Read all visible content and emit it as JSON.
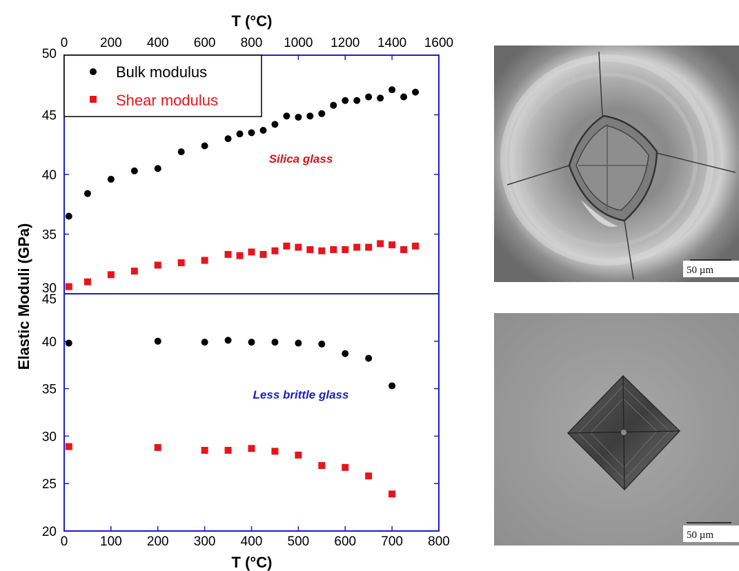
{
  "chart_data": {
    "type": "scatter",
    "top_axis_label": "T (°C)",
    "bottom_axis_label": "T (°C)",
    "ylabel": "Elastic Moduli (GPa)",
    "legend": {
      "placement": "top-left"
    },
    "legend_entries": [
      "Bulk modulus",
      "Shear modulus"
    ],
    "colors": {
      "bulk": "#000000",
      "shear": "#e8141c",
      "frame": "#1c1cc8",
      "silica_label": "#d2141e",
      "less_brittle_label": "#1c1cc8"
    },
    "upper": {
      "annotation": "Silica glass",
      "x_axis": "top",
      "xlim": [
        0,
        1600
      ],
      "ylim": [
        30,
        50
      ],
      "xticks": [
        "0",
        "200",
        "400",
        "600",
        "800",
        "1000",
        "1200",
        "1400",
        "1600"
      ],
      "yticks": [
        "30",
        "35",
        "40",
        "45",
        "50"
      ],
      "series": [
        {
          "name": "Bulk modulus",
          "marker": "circle",
          "x": [
            20,
            100,
            200,
            300,
            400,
            500,
            600,
            700,
            750,
            800,
            850,
            900,
            950,
            1000,
            1050,
            1100,
            1150,
            1200,
            1250,
            1300,
            1350,
            1400,
            1450,
            1500
          ],
          "y": [
            36.5,
            38.4,
            39.6,
            40.3,
            40.5,
            41.9,
            42.4,
            43.0,
            43.4,
            43.5,
            43.7,
            44.2,
            44.9,
            44.8,
            44.9,
            45.1,
            45.8,
            46.2,
            46.2,
            46.5,
            46.4,
            47.1,
            46.5,
            46.9
          ]
        },
        {
          "name": "Shear modulus",
          "marker": "square",
          "x": [
            20,
            100,
            200,
            300,
            400,
            500,
            600,
            700,
            750,
            800,
            850,
            900,
            950,
            1000,
            1050,
            1100,
            1150,
            1200,
            1250,
            1300,
            1350,
            1400,
            1450,
            1500
          ],
          "y": [
            30.6,
            31.0,
            31.6,
            31.9,
            32.4,
            32.6,
            32.8,
            33.3,
            33.2,
            33.5,
            33.3,
            33.6,
            34.0,
            33.9,
            33.7,
            33.6,
            33.7,
            33.7,
            33.9,
            33.9,
            34.2,
            34.1,
            33.7,
            34.0
          ]
        }
      ]
    },
    "lower": {
      "annotation": "Less brittle glass",
      "x_axis": "bottom",
      "xlim": [
        0,
        800
      ],
      "ylim": [
        20,
        45
      ],
      "xticks": [
        "0",
        "100",
        "200",
        "300",
        "400",
        "500",
        "600",
        "700",
        "800"
      ],
      "yticks": [
        "20",
        "25",
        "30",
        "35",
        "40",
        "45"
      ],
      "series": [
        {
          "name": "Bulk modulus",
          "marker": "circle",
          "x": [
            10,
            200,
            300,
            350,
            400,
            450,
            500,
            550,
            600,
            650,
            700
          ],
          "y": [
            39.8,
            40.0,
            39.9,
            40.1,
            39.9,
            39.9,
            39.8,
            39.7,
            38.7,
            38.2,
            35.3
          ]
        },
        {
          "name": "Shear modulus",
          "marker": "square",
          "x": [
            10,
            200,
            300,
            350,
            400,
            450,
            500,
            550,
            600,
            650,
            700
          ],
          "y": [
            28.9,
            28.8,
            28.5,
            28.5,
            28.7,
            28.4,
            28.0,
            26.9,
            26.7,
            25.8,
            23.9
          ]
        }
      ]
    }
  },
  "micrographs": [
    {
      "name": "silica-indent",
      "scale_bar": "50 µm"
    },
    {
      "name": "less-brittle-indent",
      "scale_bar": "50 µm"
    }
  ]
}
